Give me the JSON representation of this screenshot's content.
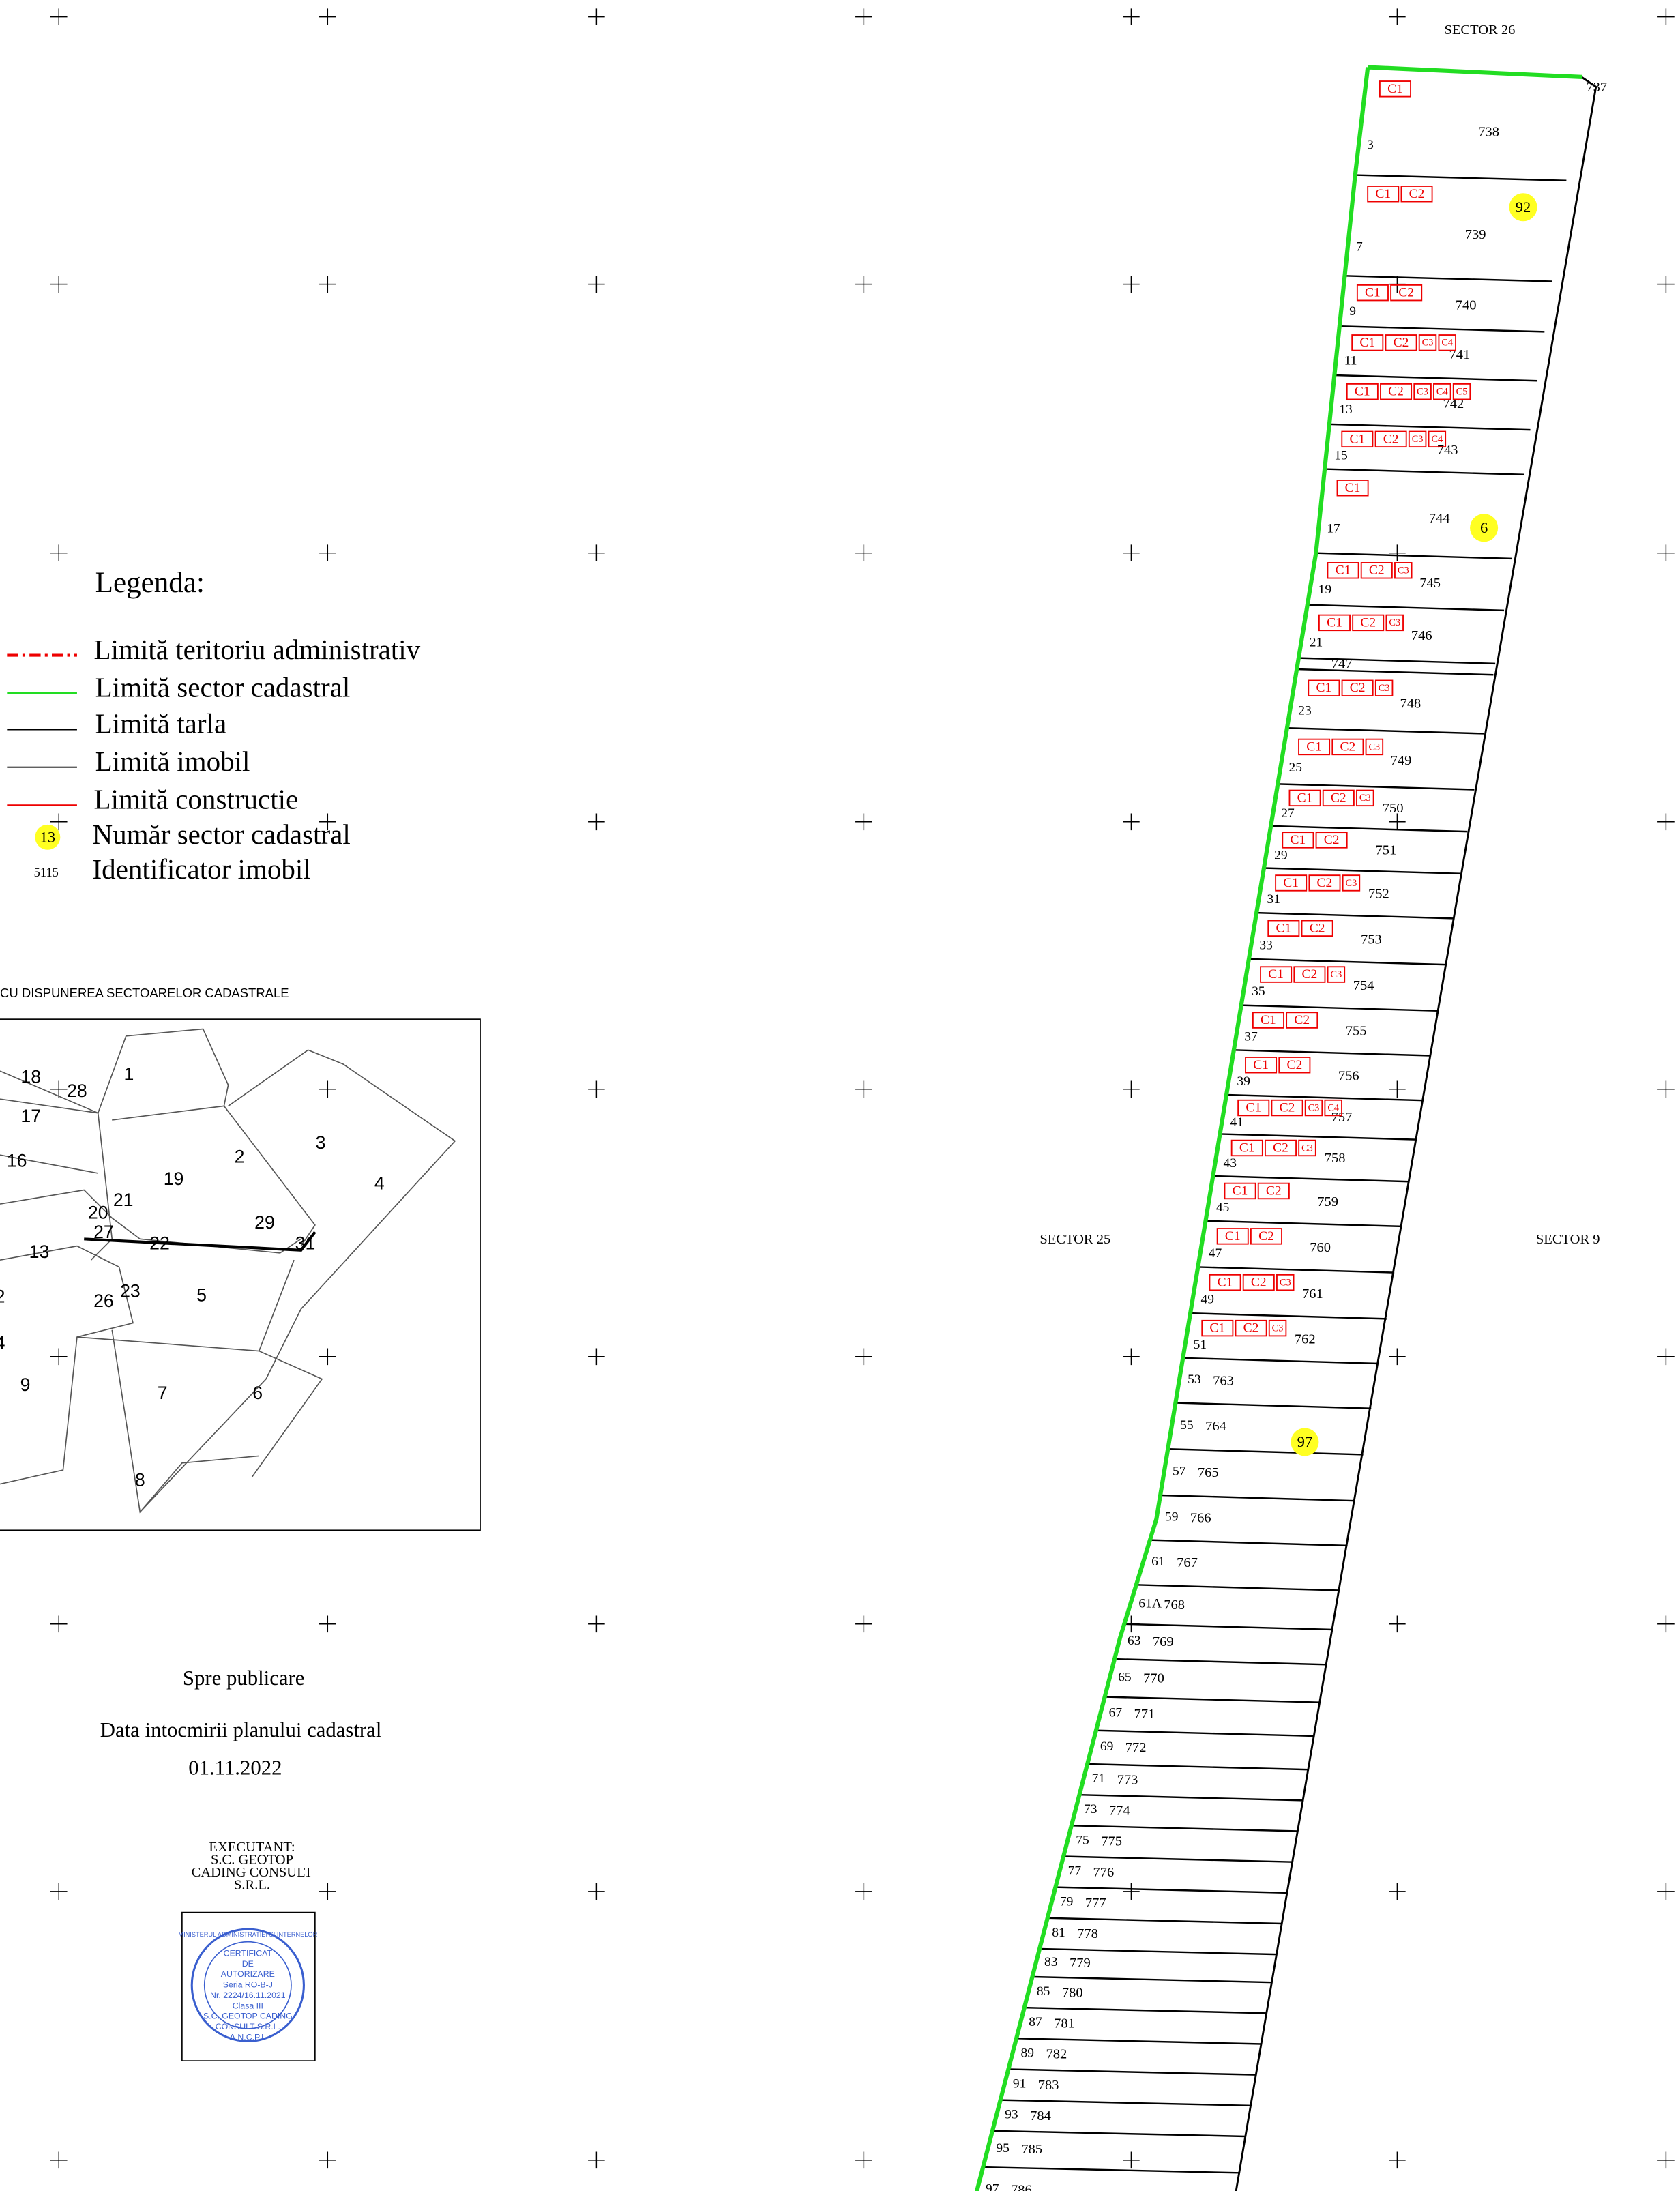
{
  "sectors": {
    "top": "SECTOR 26",
    "left": "SECTOR 25",
    "right": "SECTOR 9"
  },
  "corner_id": "737",
  "sector_markers": [
    "92",
    "6",
    "97"
  ],
  "parcels": [
    {
      "number": "3",
      "id": "738",
      "constructions": [
        "C1"
      ]
    },
    {
      "number": "7",
      "id": "739",
      "constructions": [
        "C1",
        "C2"
      ]
    },
    {
      "number": "9",
      "id": "740",
      "constructions": [
        "C1",
        "C2"
      ]
    },
    {
      "number": "11",
      "id": "741",
      "constructions": [
        "C1",
        "C2",
        "C3",
        "C4"
      ]
    },
    {
      "number": "13",
      "id": "742",
      "constructions": [
        "C1",
        "C2",
        "C3",
        "C4",
        "C5"
      ]
    },
    {
      "number": "15",
      "id": "743",
      "constructions": [
        "C1",
        "C2",
        "C3",
        "C4"
      ]
    },
    {
      "number": "17",
      "id": "744",
      "constructions": [
        "C1"
      ]
    },
    {
      "number": "19",
      "id": "745",
      "constructions": [
        "C1",
        "C2",
        "C3"
      ]
    },
    {
      "number": "21",
      "id": "746",
      "constructions": [
        "C1",
        "C2",
        "C3"
      ]
    },
    {
      "id": "747",
      "constructions": []
    },
    {
      "number": "23",
      "id": "748",
      "constructions": [
        "C1",
        "C2",
        "C3"
      ]
    },
    {
      "number": "25",
      "id": "749",
      "constructions": [
        "C1",
        "C2",
        "C3"
      ]
    },
    {
      "number": "27",
      "id": "750",
      "constructions": [
        "C1",
        "C2",
        "C3"
      ]
    },
    {
      "number": "29",
      "id": "751",
      "constructions": [
        "C1",
        "C2"
      ]
    },
    {
      "number": "31",
      "id": "752",
      "constructions": [
        "C1",
        "C2",
        "C3"
      ]
    },
    {
      "number": "33",
      "id": "753",
      "constructions": [
        "C1",
        "C2"
      ]
    },
    {
      "number": "35",
      "id": "754",
      "constructions": [
        "C1",
        "C2",
        "C3"
      ]
    },
    {
      "number": "37",
      "id": "755",
      "constructions": [
        "C1",
        "C2"
      ]
    },
    {
      "number": "39",
      "id": "756",
      "constructions": [
        "C1",
        "C2"
      ]
    },
    {
      "number": "41",
      "id": "757",
      "constructions": [
        "C1",
        "C2",
        "C3",
        "C4"
      ]
    },
    {
      "number": "43",
      "id": "758",
      "constructions": [
        "C1",
        "C2",
        "C3"
      ]
    },
    {
      "number": "45",
      "id": "759",
      "constructions": [
        "C1",
        "C2"
      ]
    },
    {
      "number": "47",
      "id": "760",
      "constructions": [
        "C1",
        "C2"
      ]
    },
    {
      "number": "49",
      "id": "761",
      "constructions": [
        "C1",
        "C2",
        "C3"
      ]
    },
    {
      "number": "51",
      "id": "762",
      "constructions": [
        "C1",
        "C2",
        "C3"
      ]
    },
    {
      "number": "53",
      "id": "763",
      "constructions": []
    },
    {
      "number": "55",
      "id": "764",
      "constructions": []
    },
    {
      "number": "57",
      "id": "765",
      "constructions": []
    },
    {
      "number": "59",
      "id": "766",
      "constructions": []
    },
    {
      "number": "61",
      "id": "767",
      "constructions": []
    },
    {
      "number": "61A",
      "id": "768",
      "constructions": []
    },
    {
      "number": "63",
      "id": "769",
      "constructions": []
    },
    {
      "number": "65",
      "id": "770",
      "constructions": []
    },
    {
      "number": "67",
      "id": "771",
      "constructions": []
    },
    {
      "number": "69",
      "id": "772",
      "constructions": []
    },
    {
      "number": "71",
      "id": "773",
      "constructions": []
    },
    {
      "number": "73",
      "id": "774",
      "constructions": []
    },
    {
      "number": "75",
      "id": "775",
      "constructions": []
    },
    {
      "number": "77",
      "id": "776",
      "constructions": []
    },
    {
      "number": "79",
      "id": "777",
      "constructions": []
    },
    {
      "number": "81",
      "id": "778",
      "constructions": []
    },
    {
      "number": "83",
      "id": "779",
      "constructions": []
    },
    {
      "number": "85",
      "id": "780",
      "constructions": []
    },
    {
      "number": "87",
      "id": "781",
      "constructions": []
    },
    {
      "number": "89",
      "id": "782",
      "constructions": []
    },
    {
      "number": "91",
      "id": "783",
      "constructions": []
    },
    {
      "number": "93",
      "id": "784",
      "constructions": []
    },
    {
      "number": "95",
      "id": "785",
      "constructions": []
    },
    {
      "number": "97",
      "id": "786",
      "constructions": []
    }
  ],
  "legend": {
    "title": "Legenda:",
    "items": [
      {
        "label": "Limită teritoriu  administrativ"
      },
      {
        "label": "Limită  sector cadastral"
      },
      {
        "label": "Limită tarla"
      },
      {
        "label": "Limită imobil"
      },
      {
        "label": "Limită constructie"
      },
      {
        "sample": "13",
        "label": "Număr sector cadastral"
      },
      {
        "sample": "5115",
        "label": "Identificator imobil"
      }
    ]
  },
  "inset": {
    "title": "CU DISPUNEREA SECTOARELOR CADASTRALE",
    "labels": [
      "18",
      "28",
      "1",
      "17",
      "16",
      "19",
      "2",
      "3",
      "4",
      "20",
      "21",
      "27",
      "22",
      "29",
      "31",
      "13",
      "23",
      "26",
      "5",
      "2",
      "4",
      "9",
      "7",
      "6",
      "8"
    ]
  },
  "footer": {
    "status": "Spre publicare",
    "date_caption": "Data intocmirii planului cadastral",
    "date": "01.11.2022",
    "executant": [
      "EXECUTANT:",
      "S.C. GEOTOP",
      "CADING  CONSULT",
      "S.R.L."
    ],
    "stamp": [
      "MINISTERUL ADMINISTRATIEI SI INTERNELOR",
      "CERTIFICAT",
      "DE",
      "AUTORIZARE",
      "Seria RO-B-J",
      "Nr. 2224/16.11.2021",
      "Clasa III",
      "S.C. GEOTOP CADING",
      "CONSULT S.R.L.",
      "A.N.C.P.I."
    ]
  }
}
